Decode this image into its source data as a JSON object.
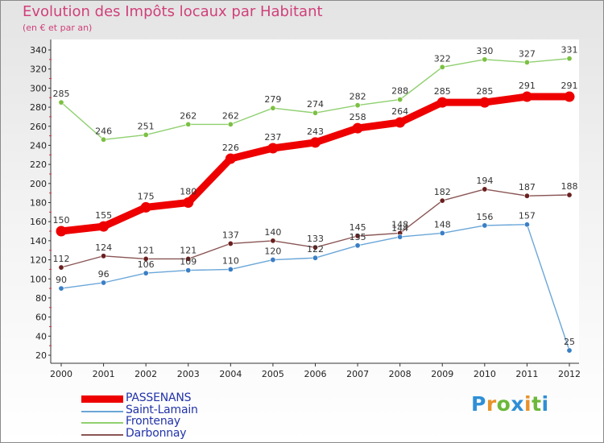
{
  "title": "Evolution des Impôts locaux par Habitant",
  "subtitle": "(en € et par an)",
  "logo": {
    "text": "Proxiti",
    "letters": [
      {
        "ch": "P",
        "color": "#2f8fd6"
      },
      {
        "ch": "r",
        "color": "#e8922a"
      },
      {
        "ch": "o",
        "color": "#6bb83a"
      },
      {
        "ch": "x",
        "color": "#2f8fd6"
      },
      {
        "ch": "i",
        "color": "#e8922a"
      },
      {
        "ch": "t",
        "color": "#6bb83a"
      },
      {
        "ch": "i",
        "color": "#2f8fd6"
      }
    ]
  },
  "chart_data": {
    "type": "line",
    "x": [
      "2000",
      "2001",
      "2002",
      "2003",
      "2004",
      "2005",
      "2006",
      "2007",
      "2008",
      "2009",
      "2010",
      "2011",
      "2012"
    ],
    "yticks": [
      20,
      40,
      60,
      80,
      100,
      120,
      140,
      160,
      180,
      200,
      220,
      240,
      260,
      280,
      300,
      320,
      340
    ],
    "ylim": [
      20,
      340
    ],
    "grid": false,
    "legend_position": "bottom-left",
    "series": [
      {
        "name": "PASSENANS",
        "color": "#ee0000",
        "markerColor": "#ee0000",
        "width": 9,
        "marker": 6.5,
        "values": [
          150,
          155,
          175,
          180,
          226,
          237,
          243,
          258,
          264,
          285,
          285,
          291,
          291
        ]
      },
      {
        "name": "Saint-Lamain",
        "color": "#6aa6d8",
        "markerColor": "#3a7fc4",
        "width": 1.4,
        "marker": 3.2,
        "values": [
          90,
          96,
          106,
          109,
          110,
          120,
          122,
          135,
          144,
          148,
          156,
          157,
          25
        ]
      },
      {
        "name": "Frontenay",
        "color": "#90d070",
        "markerColor": "#7cc043",
        "width": 1.4,
        "marker": 3.2,
        "values": [
          285,
          246,
          251,
          262,
          262,
          279,
          274,
          282,
          288,
          322,
          330,
          327,
          331
        ]
      },
      {
        "name": "Darbonnay",
        "color": "#8a5555",
        "markerColor": "#6a2020",
        "width": 1.4,
        "marker": 3.2,
        "values": [
          112,
          124,
          121,
          121,
          137,
          140,
          133,
          145,
          148,
          182,
          194,
          187,
          188
        ]
      }
    ]
  }
}
